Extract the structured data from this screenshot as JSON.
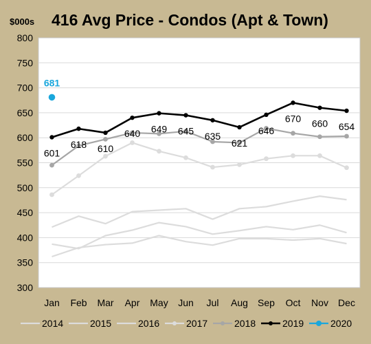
{
  "chart_data": {
    "type": "line",
    "title": "416 Avg Price - Condos (Apt & Town)",
    "ylabel": "$000s",
    "xlabel": "",
    "ylim": [
      300,
      800
    ],
    "yticks": [
      300,
      350,
      400,
      450,
      500,
      550,
      600,
      650,
      700,
      750,
      800
    ],
    "categories": [
      "Jan",
      "Feb",
      "Mar",
      "Apr",
      "May",
      "Jun",
      "Jul",
      "Aug",
      "Sep",
      "Oct",
      "Nov",
      "Dec"
    ],
    "grid": "horizontal",
    "legend_position": "bottom",
    "series": [
      {
        "name": "2014",
        "color": "#dcdcdc",
        "markers": false,
        "labels": false,
        "values": [
          362,
          380,
          386,
          389,
          404,
          392,
          385,
          398,
          398,
          395,
          398,
          388
        ]
      },
      {
        "name": "2015",
        "color": "#dcdcdc",
        "markers": false,
        "labels": false,
        "values": [
          387,
          378,
          404,
          415,
          430,
          422,
          407,
          414,
          422,
          416,
          425,
          410
        ]
      },
      {
        "name": "2016",
        "color": "#dcdcdc",
        "markers": false,
        "labels": false,
        "values": [
          421,
          443,
          428,
          452,
          455,
          458,
          437,
          458,
          462,
          473,
          483,
          476
        ]
      },
      {
        "name": "2017",
        "color": "#dcdcdc",
        "markers": true,
        "labels": false,
        "values": [
          486,
          524,
          563,
          590,
          573,
          560,
          541,
          546,
          558,
          564,
          564,
          540
        ]
      },
      {
        "name": "2018",
        "color": "#a6a6a6",
        "markers": true,
        "labels": false,
        "values": [
          545,
          584,
          597,
          610,
          608,
          613,
          592,
          590,
          619,
          609,
          602,
          603
        ]
      },
      {
        "name": "2019",
        "color": "#000000",
        "markers": true,
        "labels": true,
        "values": [
          601,
          618,
          610,
          640,
          649,
          645,
          635,
          621,
          646,
          670,
          660,
          654
        ]
      },
      {
        "name": "2020",
        "color": "#1aa7dc",
        "markers": true,
        "labels": true,
        "values": [
          681,
          null,
          null,
          null,
          null,
          null,
          null,
          null,
          null,
          null,
          null,
          null
        ]
      }
    ]
  }
}
